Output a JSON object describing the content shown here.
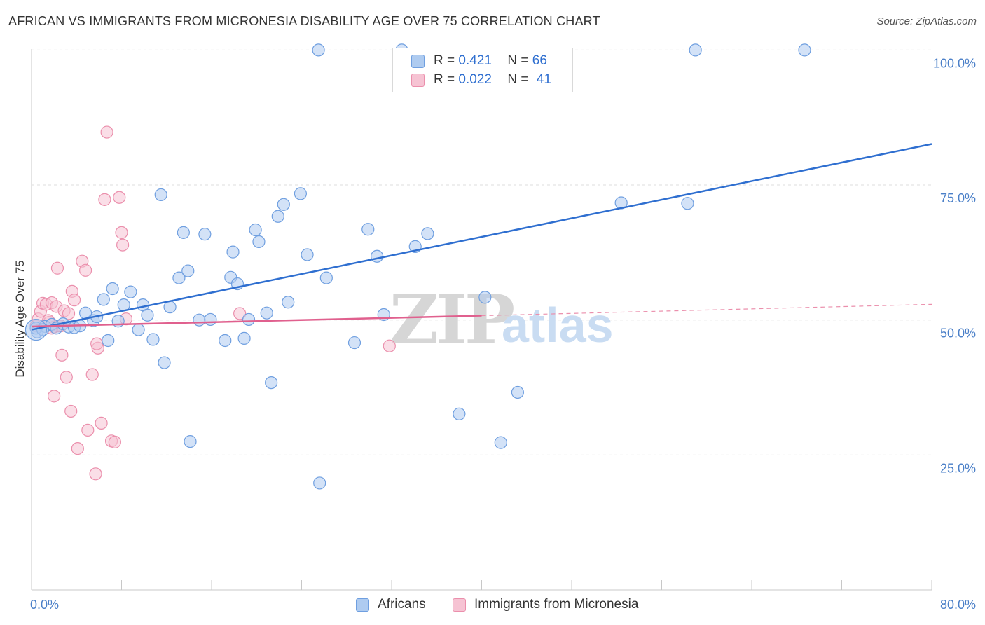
{
  "header": {
    "title": "AFRICAN VS IMMIGRANTS FROM MICRONESIA DISABILITY AGE OVER 75 CORRELATION CHART",
    "source": "Source: ZipAtlas.com"
  },
  "watermark": {
    "zip": "ZIP",
    "atlas": "atlas"
  },
  "legend": {
    "rows": [
      {
        "r_label": "R =",
        "r_value": "0.421",
        "n_label": "N =",
        "n_value": "66"
      },
      {
        "r_label": "R =",
        "r_value": "0.022",
        "n_label": "N =",
        "n_value": "41"
      }
    ]
  },
  "bottom_legend": {
    "series1": "Africans",
    "series2": "Immigrants from Micronesia"
  },
  "colors": {
    "africans_fill": "#aecbf0",
    "africans_stroke": "#6f9fe0",
    "africans_line": "#2f6fd0",
    "micronesia_fill": "#f6c3d3",
    "micronesia_stroke": "#eb8fac",
    "micronesia_line": "#e0608e",
    "tick_text": "#4a7fc8"
  },
  "chart_data": {
    "type": "scatter",
    "title": "AFRICAN VS IMMIGRANTS FROM MICRONESIA DISABILITY AGE OVER 75 CORRELATION CHART",
    "xlabel": "",
    "ylabel": "Disability Age Over 75",
    "xlim": [
      0,
      80
    ],
    "ylim": [
      0,
      102
    ],
    "x_tick_labels": [
      {
        "value": 0,
        "label": "0.0%"
      },
      {
        "value": 80,
        "label": "80.0%"
      }
    ],
    "y_tick_labels": [
      {
        "value": 100,
        "label": "100.0%"
      },
      {
        "value": 75,
        "label": "75.0%"
      },
      {
        "value": 50,
        "label": "50.0%"
      },
      {
        "value": 25,
        "label": "25.0%"
      }
    ],
    "x_minor_ticks": [
      8,
      16,
      24,
      32,
      40,
      48,
      56,
      64,
      72,
      80
    ],
    "gridlines": [
      100,
      75,
      50,
      25
    ],
    "series": [
      {
        "name": "Africans",
        "R": 0.421,
        "N": 66,
        "trend": {
          "x0": 0,
          "y0": 48.2,
          "x1": 80,
          "y1": 82.6
        },
        "points": [
          [
            0.5,
            47.8
          ],
          [
            1.2,
            48.8
          ],
          [
            1.8,
            49.2
          ],
          [
            2.2,
            48.5
          ],
          [
            2.8,
            49.3
          ],
          [
            3.3,
            48.7
          ],
          [
            3.8,
            48.6
          ],
          [
            4.3,
            48.9
          ],
          [
            4.8,
            51.3
          ],
          [
            5.5,
            49.9
          ],
          [
            5.8,
            50.6
          ],
          [
            6.4,
            53.8
          ],
          [
            6.8,
            46.2
          ],
          [
            7.2,
            55.8
          ],
          [
            7.7,
            49.8
          ],
          [
            8.2,
            52.8
          ],
          [
            8.8,
            55.2
          ],
          [
            9.5,
            48.2
          ],
          [
            9.9,
            52.8
          ],
          [
            10.3,
            50.9
          ],
          [
            10.8,
            46.4
          ],
          [
            11.5,
            73.2
          ],
          [
            11.8,
            42.1
          ],
          [
            12.3,
            52.4
          ],
          [
            13.1,
            57.8
          ],
          [
            13.5,
            66.2
          ],
          [
            13.9,
            59.1
          ],
          [
            14.1,
            27.5
          ],
          [
            14.9,
            50.0
          ],
          [
            15.4,
            65.9
          ],
          [
            15.9,
            50.1
          ],
          [
            17.2,
            46.2
          ],
          [
            17.7,
            57.9
          ],
          [
            17.9,
            62.6
          ],
          [
            18.3,
            56.7
          ],
          [
            18.9,
            46.6
          ],
          [
            19.3,
            50.1
          ],
          [
            19.9,
            66.7
          ],
          [
            20.2,
            64.5
          ],
          [
            20.9,
            51.3
          ],
          [
            21.3,
            38.4
          ],
          [
            21.9,
            69.2
          ],
          [
            22.4,
            71.4
          ],
          [
            22.8,
            53.3
          ],
          [
            23.9,
            73.4
          ],
          [
            24.5,
            62.1
          ],
          [
            25.5,
            100
          ],
          [
            25.6,
            19.8
          ],
          [
            26.2,
            57.8
          ],
          [
            28.7,
            45.8
          ],
          [
            29.9,
            66.8
          ],
          [
            30.7,
            61.8
          ],
          [
            31.3,
            51.0
          ],
          [
            32.9,
            100
          ],
          [
            34.1,
            63.6
          ],
          [
            35.2,
            66.0
          ],
          [
            38.0,
            32.6
          ],
          [
            40.3,
            54.2
          ],
          [
            41.7,
            27.3
          ],
          [
            43.2,
            36.6
          ],
          [
            52.4,
            71.7
          ],
          [
            58.3,
            71.6
          ],
          [
            59.0,
            100
          ],
          [
            68.7,
            100
          ],
          [
            0.4,
            48.5
          ],
          [
            1.0,
            48.2
          ]
        ]
      },
      {
        "name": "Immigrants from Micronesia",
        "R": 0.022,
        "N": 41,
        "trend": {
          "x0": 0,
          "y0": 48.8,
          "x1": 40,
          "y1": 50.8
        },
        "trend_extension": {
          "x0": 40,
          "y0": 50.8,
          "x1": 80,
          "y1": 52.9
        },
        "points": [
          [
            0.4,
            48.9
          ],
          [
            0.6,
            50.2
          ],
          [
            0.8,
            51.6
          ],
          [
            1.0,
            53.1
          ],
          [
            1.3,
            52.9
          ],
          [
            1.6,
            49.6
          ],
          [
            1.8,
            53.2
          ],
          [
            2.0,
            48.7
          ],
          [
            2.2,
            52.5
          ],
          [
            2.4,
            48.9
          ],
          [
            2.6,
            48.9
          ],
          [
            1.8,
            48.5
          ],
          [
            1.5,
            49.9
          ],
          [
            2.3,
            59.6
          ],
          [
            2.9,
            51.7
          ],
          [
            3.1,
            39.4
          ],
          [
            3.3,
            51.2
          ],
          [
            3.5,
            33.1
          ],
          [
            3.6,
            55.3
          ],
          [
            3.8,
            53.7
          ],
          [
            2.7,
            43.5
          ],
          [
            2.0,
            35.9
          ],
          [
            4.1,
            26.2
          ],
          [
            4.5,
            60.9
          ],
          [
            4.8,
            59.2
          ],
          [
            5.0,
            29.6
          ],
          [
            5.4,
            39.9
          ],
          [
            5.7,
            21.5
          ],
          [
            5.9,
            44.8
          ],
          [
            5.8,
            45.6
          ],
          [
            6.2,
            30.9
          ],
          [
            6.5,
            72.3
          ],
          [
            6.7,
            84.8
          ],
          [
            7.1,
            27.6
          ],
          [
            7.4,
            27.4
          ],
          [
            7.8,
            72.7
          ],
          [
            8.0,
            66.2
          ],
          [
            8.1,
            63.9
          ],
          [
            8.4,
            50.2
          ],
          [
            18.5,
            51.2
          ],
          [
            31.8,
            45.2
          ]
        ]
      }
    ]
  }
}
